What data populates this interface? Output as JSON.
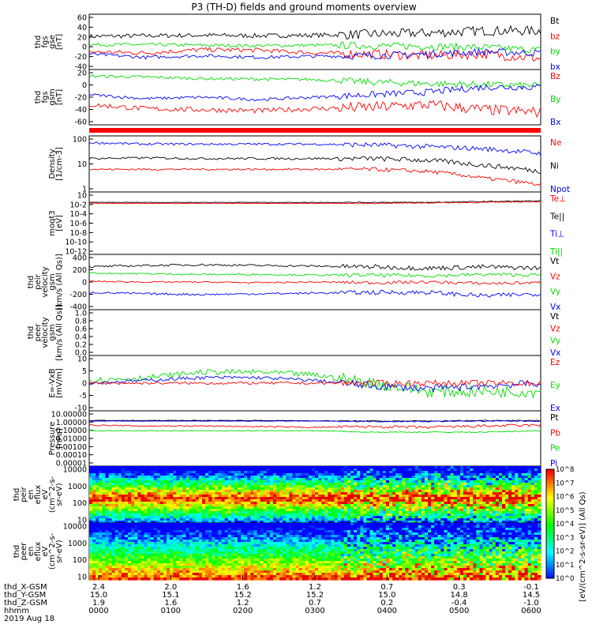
{
  "title": "P3 (TH-D) fields and ground moments overview",
  "chart_data": {
    "type": "line",
    "title": "P3 (TH-D) fields and ground moments overview",
    "x_axis": {
      "hhmm_ticks": [
        "0000",
        "0100",
        "0200",
        "0300",
        "0400",
        "0500",
        "0600"
      ],
      "date_label": "2019 Aug 18",
      "rows": [
        {
          "label": "thd_X-GSM",
          "values": [
            "2.4",
            "2.0",
            "1.6",
            "1.2",
            "0.7",
            "0.3",
            "-0.1"
          ]
        },
        {
          "label": "thd_Y-GSM",
          "values": [
            "15.0",
            "15.1",
            "15.2",
            "15.2",
            "15.0",
            "14.8",
            "14.5"
          ]
        },
        {
          "label": "thd_Z-GSM",
          "values": [
            "1.9",
            "1.6",
            "1.2",
            "0.7",
            "0.2",
            "-0.4",
            "-1.0"
          ]
        },
        {
          "label": "hhmm",
          "values": [
            "0000",
            "0100",
            "0200",
            "0300",
            "0400",
            "0500",
            "0600"
          ]
        }
      ]
    },
    "panels": [
      {
        "id": "fgs",
        "ylabel": [
          "thd",
          "fgs",
          "gse",
          "[nT]"
        ],
        "ylim": [
          -40,
          60
        ],
        "yticks": [
          "60",
          "40",
          "20",
          "0",
          "-20",
          "-40"
        ],
        "legend": [
          {
            "name": "Bt",
            "color": "#000000"
          },
          {
            "name": "bz",
            "color": "#ff0000"
          },
          {
            "name": "by",
            "color": "#00dd00"
          },
          {
            "name": "bx",
            "color": "#0000ff"
          }
        ],
        "series": [
          {
            "name": "Bt",
            "color": "#000000",
            "baseline": [
              20,
              21,
              22,
              21,
              22,
              24,
              26,
              30,
              30
            ],
            "noise": 4
          },
          {
            "name": "by",
            "color": "#00dd00",
            "baseline": [
              5,
              5,
              4,
              3,
              4,
              3,
              2,
              0,
              -5
            ],
            "noise": 3
          },
          {
            "name": "bz",
            "color": "#ff0000",
            "baseline": [
              -8,
              -10,
              -4,
              -5,
              -10,
              -12,
              -15,
              -12,
              -20
            ],
            "noise": 4
          },
          {
            "name": "bx",
            "color": "#0000ff",
            "baseline": [
              -12,
              -18,
              -15,
              -18,
              -16,
              -15,
              -12,
              -8,
              -10
            ],
            "noise": 3
          }
        ]
      },
      {
        "id": "fgs-gsm",
        "ylabel": [
          "thd",
          "fgs",
          "gsm",
          "[nT]"
        ],
        "ylim": [
          -70,
          40
        ],
        "yticks": [
          "20",
          "0",
          "-20",
          "-40",
          "-60"
        ],
        "legend": [
          {
            "name": "Bz",
            "color": "#ff0000"
          },
          {
            "name": "By",
            "color": "#00dd00"
          },
          {
            "name": "Bx",
            "color": "#0000ff"
          }
        ],
        "series": [
          {
            "name": "By",
            "color": "#00dd00",
            "baseline": [
              27,
              25,
              22,
              21,
              20,
              15,
              12,
              10,
              8
            ],
            "noise": 3
          },
          {
            "name": "Bx",
            "color": "#0000ff",
            "baseline": [
              -10,
              -18,
              -15,
              -20,
              -15,
              -10,
              -5,
              5,
              5
            ],
            "noise": 3
          },
          {
            "name": "Bz",
            "color": "#ff0000",
            "baseline": [
              -30,
              -38,
              -40,
              -42,
              -38,
              -35,
              -30,
              -40,
              -45
            ],
            "noise": 5
          }
        ]
      },
      {
        "id": "density",
        "ylabel": [
          "Density",
          "[1/cm-3]"
        ],
        "ylim": [
          1,
          300
        ],
        "log": true,
        "yticks": [
          "100",
          "10",
          "1"
        ],
        "legend": [
          {
            "name": "Ne",
            "color": "#ff0000"
          },
          {
            "name": "Ni",
            "color": "#000000"
          },
          {
            "name": "Npot",
            "color": "#0000ff"
          }
        ],
        "series": [
          {
            "name": "Npot",
            "color": "#0000ff",
            "baseline": [
              150,
              130,
              130,
              130,
              130,
              120,
              100,
              80,
              50
            ],
            "noise": 0.05
          },
          {
            "name": "Ni",
            "color": "#000000",
            "baseline": [
              30,
              32,
              30,
              30,
              30,
              30,
              25,
              15,
              8
            ],
            "noise": 0.05
          },
          {
            "name": "Ne",
            "color": "#ff0000",
            "baseline": [
              10,
              10,
              10,
              10,
              10,
              10,
              8,
              4,
              2
            ],
            "noise": 0.04
          }
        ]
      },
      {
        "id": "temp",
        "ylabel": [
          "moqt3",
          "[eV]"
        ],
        "ylim": [
          0.0001,
          100
        ],
        "log": true,
        "yticks": [
          "10",
          "10-2",
          "10-4",
          "10-6",
          "10-8",
          "10-10",
          "10-12"
        ],
        "legend": [
          {
            "name": "Te⊥",
            "color": "#ff0000"
          },
          {
            "name": "Te||",
            "color": "#000000"
          },
          {
            "name": "Ti⊥",
            "color": "#0000ff"
          },
          {
            "name": "Ti||",
            "color": "#00dd00"
          }
        ],
        "series": [
          {
            "name": "Te||",
            "color": "#000000",
            "baseline": [
              10,
              10,
              10,
              10,
              10,
              10,
              10,
              12,
              14
            ],
            "noise": 0.02
          },
          {
            "name": "Te⊥",
            "color": "#ff0000",
            "baseline": [
              8,
              8,
              8,
              8,
              8,
              8,
              9,
              10,
              12
            ],
            "noise": 0.02
          }
        ]
      },
      {
        "id": "velocity",
        "ylabel": [
          "thd",
          "peir",
          "velocity",
          "gsm",
          "[km/s (All Qs)]"
        ],
        "ylim": [
          -400,
          400
        ],
        "yticks": [
          "400",
          "200",
          "0",
          "-200",
          "-400"
        ],
        "legend": [
          {
            "name": "Vt",
            "color": "#000000"
          },
          {
            "name": "Vz",
            "color": "#ff0000"
          },
          {
            "name": "Vy",
            "color": "#00dd00"
          },
          {
            "name": "Vx",
            "color": "#0000ff"
          }
        ],
        "series": [
          {
            "name": "Vt",
            "color": "#000000",
            "baseline": [
              220,
              240,
              250,
              240,
              230,
              220,
              200,
              220,
              200
            ],
            "noise": 15
          },
          {
            "name": "Vy",
            "color": "#00dd00",
            "baseline": [
              130,
              120,
              110,
              110,
              100,
              100,
              90,
              110,
              100
            ],
            "noise": 12
          },
          {
            "name": "Vz",
            "color": "#ff0000",
            "baseline": [
              10,
              0,
              0,
              -10,
              0,
              -10,
              0,
              -20,
              -10
            ],
            "noise": 10
          },
          {
            "name": "Vx",
            "color": "#0000ff",
            "baseline": [
              -150,
              -170,
              -180,
              -170,
              -160,
              -150,
              -150,
              -200,
              -170
            ],
            "noise": 15
          }
        ]
      },
      {
        "id": "peer-velocity",
        "ylabel": [
          "thd",
          "peer",
          "velocity",
          "gsm",
          "[km/s (All Qs)]"
        ],
        "ylim": [
          0,
          1
        ],
        "yticks": [
          "1.0",
          "0.8",
          "0.6",
          "0.4",
          "0.2",
          "0.0"
        ],
        "legend": [
          {
            "name": "Vt",
            "color": "#000000"
          },
          {
            "name": "Vz",
            "color": "#ff0000"
          },
          {
            "name": "Vy",
            "color": "#00dd00"
          },
          {
            "name": "Vx",
            "color": "#0000ff"
          }
        ],
        "series": []
      },
      {
        "id": "efield",
        "ylabel": [
          "E=-VxB",
          "[mV/m]"
        ],
        "ylim": [
          -10,
          10
        ],
        "yticks": [
          "10",
          "5",
          "0",
          "-5",
          "-10"
        ],
        "legend": [
          {
            "name": "Ez",
            "color": "#ff0000"
          },
          {
            "name": "Ey",
            "color": "#00dd00"
          },
          {
            "name": "Ex",
            "color": "#0000ff"
          }
        ],
        "series": [
          {
            "name": "Ey",
            "color": "#00dd00",
            "baseline": [
              1,
              2,
              4,
              4,
              3,
              0,
              -3,
              -3,
              -3
            ],
            "noise": 1
          },
          {
            "name": "Ex",
            "color": "#0000ff",
            "baseline": [
              0,
              1,
              2,
              2,
              1,
              -1,
              -2,
              -1,
              0
            ],
            "noise": 0.6
          },
          {
            "name": "Ez",
            "color": "#ff0000",
            "baseline": [
              0,
              0,
              0,
              0,
              0,
              0,
              0,
              0,
              0
            ],
            "noise": 0.5
          }
        ]
      },
      {
        "id": "pressure",
        "ylabel": [
          "Pressure",
          "[nPa]"
        ],
        "ylim": [
          1e-06,
          10
        ],
        "log": true,
        "yticks": [
          "10.00000",
          "1.00000",
          "0.10000",
          "0.01000",
          "0.00100",
          "0.00010",
          "0.00001"
        ],
        "legend": [
          {
            "name": "Pt",
            "color": "#000000"
          },
          {
            "name": "Pb",
            "color": "#ff0000"
          },
          {
            "name": "Pe",
            "color": "#00dd00"
          },
          {
            "name": "Pi",
            "color": "#0000ff"
          }
        ],
        "series": [
          {
            "name": "Pt",
            "color": "#000000",
            "baseline": [
              0.6,
              0.6,
              0.6,
              0.6,
              0.55,
              0.5,
              0.5,
              0.6,
              0.6
            ],
            "noise": 0.03
          },
          {
            "name": "Pi",
            "color": "#0000ff",
            "baseline": [
              0.5,
              0.5,
              0.5,
              0.5,
              0.5,
              0.45,
              0.45,
              0.5,
              0.5
            ],
            "noise": 0.03
          },
          {
            "name": "Pb",
            "color": "#ff0000",
            "baseline": [
              0.15,
              0.12,
              0.12,
              0.1,
              0.08,
              0.1,
              0.08,
              0.12,
              0.15
            ],
            "noise": 0.08
          },
          {
            "name": "Pe",
            "color": "#00dd00",
            "baseline": [
              0.03,
              0.03,
              0.03,
              0.03,
              0.03,
              0.02,
              0.02,
              0.02,
              0.03
            ],
            "noise": 0.03
          }
        ]
      },
      {
        "id": "peir-spec",
        "type": "heatmap",
        "ylabel": [
          "thd",
          "peir",
          "en",
          "eflux",
          "eV",
          "(cm^2-s-",
          "sr-eV)"
        ],
        "yticks": [
          "10000",
          "1000",
          "100",
          "10"
        ]
      },
      {
        "id": "peer-spec",
        "type": "heatmap",
        "ylabel": [
          "thd",
          "peer",
          "en",
          "eflux",
          "eV",
          "(cm^2-s-",
          "sr-eV)"
        ],
        "yticks": [
          "10000",
          "1000",
          "100",
          "10"
        ]
      }
    ],
    "colorbar": {
      "label": "[eV/(cm^2-s-sr-eV)] (All Qs)",
      "ticks": [
        "10^8",
        "10^7",
        "10^6",
        "10^5",
        "10^4",
        "10^3",
        "10^2",
        "10^1",
        "10^0"
      ]
    }
  }
}
